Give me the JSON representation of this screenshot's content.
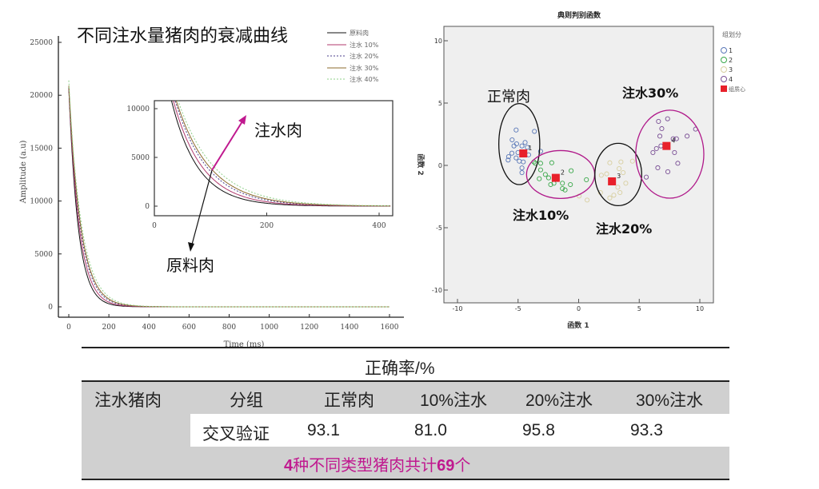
{
  "chart_data": [
    {
      "type": "line",
      "title": "不同注水量猪肉的衰减曲线",
      "xlabel": "Time (ms)",
      "ylabel": "Amplitude (a.u)",
      "xlim": [
        -50,
        1670
      ],
      "ylim": [
        -1000,
        25500
      ],
      "xticks": [
        0,
        200,
        400,
        600,
        800,
        1000,
        1200,
        1400,
        1600
      ],
      "yticks": [
        0,
        5000,
        10000,
        15000,
        20000,
        25000
      ],
      "legend_position": "top-right",
      "x": [
        0,
        25,
        50,
        75,
        100,
        150,
        200,
        250,
        300,
        400,
        600,
        1600
      ],
      "series": [
        {
          "name": "原料肉",
          "color": "#111111",
          "dash": "",
          "values": [
            20700,
            12160,
            7145,
            4198,
            2466,
            851,
            294,
            101,
            35,
            4,
            0,
            0
          ]
        },
        {
          "name": "注水 10%",
          "color": "#b23a6e",
          "dash": "",
          "values": [
            20700,
            12800,
            7914,
            4893,
            3026,
            1157,
            442,
            169,
            65,
            9,
            0,
            0
          ]
        },
        {
          "name": "注水 20%",
          "color": "#4b3f8c",
          "dash": "2,2",
          "values": [
            20700,
            13350,
            8609,
            5552,
            3581,
            1490,
            620,
            258,
            107,
            18,
            0,
            0
          ]
        },
        {
          "name": "注水 30%",
          "color": "#8c6b2e",
          "dash": "",
          "values": [
            20900,
            13645,
            8996,
            5931,
            3910,
            1699,
            739,
            321,
            139,
            26,
            0,
            0
          ]
        },
        {
          "name": "注水 40%",
          "color": "#8fd08a",
          "dash": "2,2",
          "values": [
            21400,
            14090,
            9592,
            6529,
            4444,
            2060,
            954,
            443,
            205,
            44,
            1,
            0
          ]
        }
      ],
      "inset": {
        "xlim": [
          0,
          425
        ],
        "ylim": [
          -1000,
          10800
        ],
        "xticks": [
          0,
          200,
          400
        ],
        "yticks": [
          0,
          5000,
          10000
        ],
        "annotations": [
          {
            "text": "注水肉",
            "color": "#c0198f"
          },
          {
            "text": "原料肉",
            "color": "#111111"
          }
        ]
      }
    },
    {
      "type": "scatter",
      "title": "典则判别函数",
      "xlabel": "函数 1",
      "ylabel": "函数 2",
      "xlim": [
        -11.1,
        11.1
      ],
      "ylim": [
        -11.1,
        11.2
      ],
      "xticks": [
        -10,
        -5,
        0,
        5,
        10
      ],
      "yticks": [
        -10,
        -5,
        0,
        5,
        10
      ],
      "background": "#efefef",
      "legend_title": "组划分",
      "legend_position": "right",
      "series": [
        {
          "name": "1",
          "color": "#5a78b8",
          "points": [
            [
              -5.16,
              2.84
            ],
            [
              -3.65,
              2.73
            ],
            [
              -5.49,
              2.05
            ],
            [
              -5.12,
              1.73
            ],
            [
              -4.42,
              1.84
            ],
            [
              -5.34,
              1.56
            ],
            [
              -4.68,
              1.56
            ],
            [
              -4.24,
              1.45
            ],
            [
              -5.51,
              0.98
            ],
            [
              -5.78,
              0.7
            ],
            [
              -5.82,
              0.43
            ],
            [
              -5.16,
              0.6
            ],
            [
              -4.9,
              0.34
            ],
            [
              -4.57,
              0.28
            ],
            [
              -4.68,
              -0.2
            ],
            [
              -4.68,
              -0.58
            ],
            [
              -4.13,
              0.85
            ],
            [
              -5.01,
              1.03
            ],
            [
              -3.14,
              1.13
            ]
          ]
        },
        {
          "name": "2",
          "color": "#3aa84a",
          "points": [
            [
              -3.69,
              0.28
            ],
            [
              -3.14,
              0.17
            ],
            [
              -2.22,
              0.21
            ],
            [
              -3.14,
              -0.36
            ],
            [
              -2.75,
              -0.73
            ],
            [
              -3.25,
              -1.07
            ],
            [
              -2.31,
              -1.54
            ],
            [
              -2.04,
              -1.43
            ],
            [
              -1.34,
              -1.43
            ],
            [
              -1.34,
              -1.86
            ],
            [
              -1.12,
              -1.97
            ],
            [
              -0.68,
              -1.54
            ],
            [
              -0.62,
              -0.43
            ],
            [
              0.64,
              -1.15
            ],
            [
              -2.48,
              -1.0
            ],
            [
              -3.58,
              0.17
            ],
            [
              -1.82,
              -1.11
            ]
          ]
        },
        {
          "name": "3",
          "color": "#d8cfa0",
          "points": [
            [
              2.57,
              0.21
            ],
            [
              3.49,
              0.28
            ],
            [
              4.44,
              0.34
            ],
            [
              1.87,
              -0.79
            ],
            [
              2.31,
              -0.68
            ],
            [
              3.34,
              -0.26
            ],
            [
              3.67,
              -0.58
            ],
            [
              3.89,
              -1.43
            ],
            [
              3.23,
              -1.75
            ],
            [
              3.41,
              -2.18
            ],
            [
              2.9,
              -2.39
            ],
            [
              2.57,
              -2.61
            ],
            [
              1.8,
              -2.18
            ],
            [
              0.04,
              -2.46
            ],
            [
              0.7,
              -2.78
            ]
          ]
        },
        {
          "name": "4",
          "color": "#7a4f95",
          "points": [
            [
              6.59,
              3.53
            ],
            [
              7.34,
              3.74
            ],
            [
              6.86,
              2.95
            ],
            [
              9.65,
              2.91
            ],
            [
              6.7,
              2.35
            ],
            [
              8.07,
              2.14
            ],
            [
              8.95,
              2.35
            ],
            [
              6.79,
              1.56
            ],
            [
              6.42,
              1.35
            ],
            [
              6.13,
              1.03
            ],
            [
              7.91,
              1.03
            ],
            [
              8.18,
              0.17
            ],
            [
              6.53,
              -0.19
            ],
            [
              7.36,
              -0.51
            ],
            [
              5.58,
              -0.94
            ],
            [
              7.8,
              2.14
            ]
          ]
        }
      ],
      "centroids": {
        "name": "组质心",
        "color": "#e8202a",
        "points": [
          {
            "label": "1",
            "x": -4.57,
            "y": 0.96
          },
          {
            "label": "2",
            "x": -1.89,
            "y": -1.0
          },
          {
            "label": "3",
            "x": 2.75,
            "y": -1.28
          },
          {
            "label": "4",
            "x": 7.25,
            "y": 1.56
          }
        ]
      },
      "ellipses": [
        {
          "cx": -4.9,
          "cy": 1.71,
          "rx": 1.69,
          "ry": 3.25,
          "color": "#111111"
        },
        {
          "cx": -1.49,
          "cy": -0.73,
          "rx": 2.81,
          "ry": 1.92,
          "color": "#b0198a"
        },
        {
          "cx": 3.27,
          "cy": -0.73,
          "rx": 1.93,
          "ry": 2.5,
          "color": "#111111"
        },
        {
          "cx": 7.52,
          "cy": 0.9,
          "rx": 2.81,
          "ry": 3.53,
          "color": "#b0198a"
        }
      ],
      "annotations": [
        "正常肉",
        "注水10%",
        "注水20%",
        "注水30%"
      ]
    }
  ],
  "table": {
    "caption": "正确率/%",
    "row_header": "注水猪肉",
    "headers": [
      "分组",
      "正常肉",
      "10%注水",
      "20%注水",
      "30%注水"
    ],
    "row": {
      "label": "交叉验证",
      "values": [
        "93.1",
        "81.0",
        "95.8",
        "93.3"
      ]
    },
    "footer": {
      "num1": "4",
      "text1": "种不同类型猪肉共计",
      "num2": "69",
      "text2": "个",
      "color": "#c0198f"
    }
  }
}
